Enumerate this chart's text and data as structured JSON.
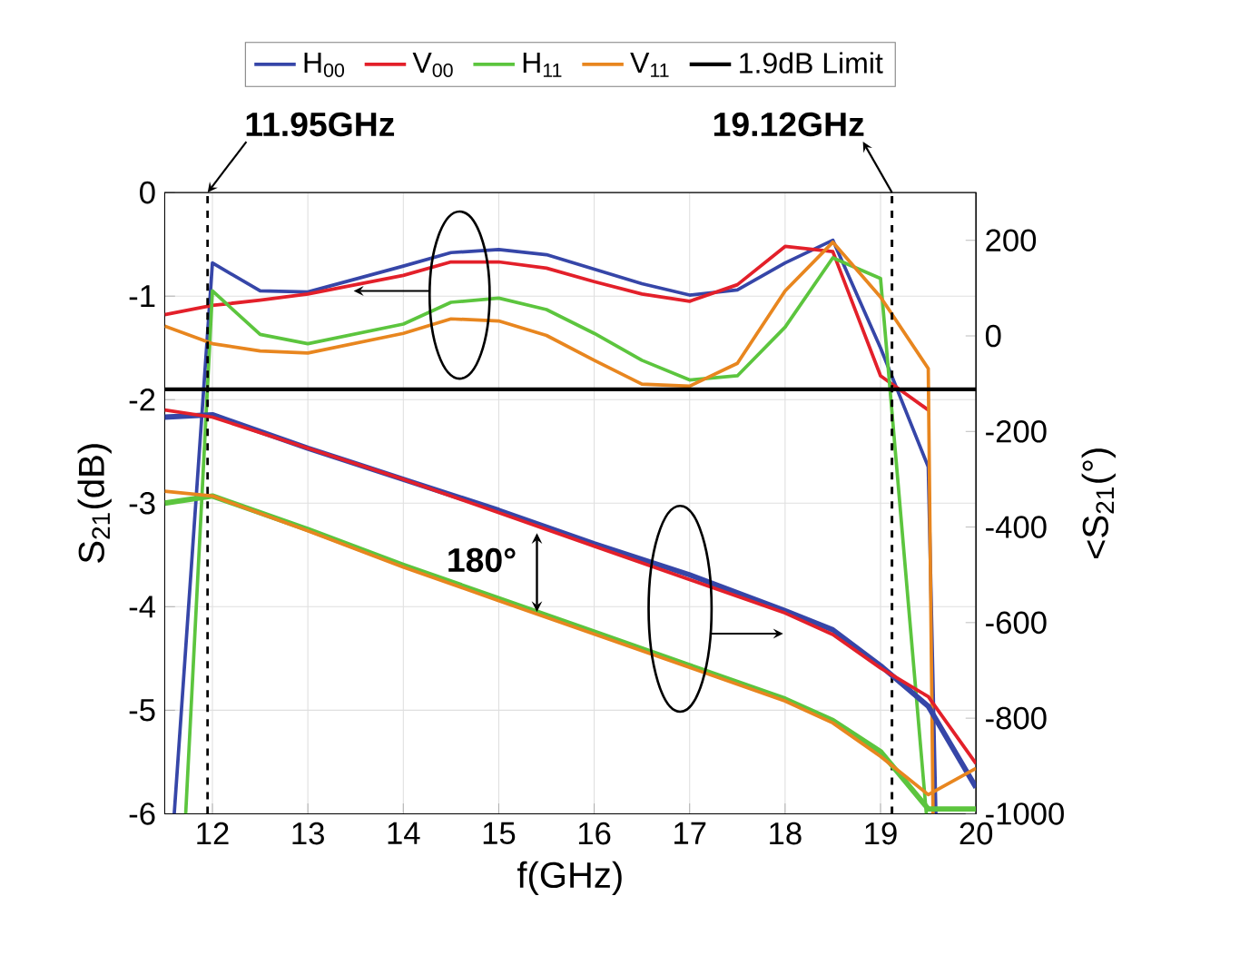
{
  "chart_data": {
    "type": "line",
    "xlabel": "f(GHz)",
    "ylabel": "S$_{21}$(dB)",
    "y2label": "<S$_{21}$(°)",
    "xlim": [
      11.5,
      20
    ],
    "xticks": [
      12,
      13,
      14,
      15,
      16,
      17,
      18,
      19,
      20
    ],
    "ylim": [
      -6,
      0
    ],
    "yticks": [
      -6,
      -5,
      -4,
      -3,
      -2,
      -1,
      0
    ],
    "y2lim": [
      -1000,
      300
    ],
    "y2ticks": [
      -1000,
      -800,
      -600,
      -400,
      -200,
      0,
      200
    ],
    "grid": true,
    "legend": "top",
    "marker": "none",
    "line_style": "solid",
    "series": [
      {
        "name": "H$_{00}$",
        "color": "#3646a8",
        "x": [
          11.6,
          12,
          12.5,
          13,
          14,
          14.5,
          15,
          15.5,
          16,
          16.5,
          17,
          17.5,
          18,
          18.5,
          19,
          19.5,
          19.58
        ],
        "values": [
          -6,
          -0.68,
          -0.95,
          -0.96,
          -0.71,
          -0.58,
          -0.55,
          -0.6,
          -0.74,
          -0.88,
          -0.99,
          -0.94,
          -0.68,
          -0.46,
          -1.5,
          -2.65,
          -6
        ]
      },
      {
        "name": "V$_{00}$",
        "color": "#e3202a",
        "x": [
          11.5,
          12,
          12.5,
          13,
          14,
          14.5,
          15,
          15.5,
          16,
          16.5,
          17,
          17.5,
          18,
          18.5,
          19,
          19.5
        ],
        "values": [
          -1.18,
          -1.09,
          -1.04,
          -0.98,
          -0.8,
          -0.67,
          -0.67,
          -0.73,
          -0.86,
          -0.98,
          -1.05,
          -0.89,
          -0.52,
          -0.57,
          -1.77,
          -2.1
        ]
      },
      {
        "name": "H$_{11}$",
        "color": "#5cc53e",
        "x": [
          11.72,
          12,
          12.5,
          13,
          14,
          14.5,
          15,
          15.5,
          16,
          16.5,
          17,
          17.5,
          18,
          18.5,
          19,
          19.48
        ],
        "values": [
          -6,
          -0.95,
          -1.37,
          -1.46,
          -1.27,
          -1.06,
          -1.02,
          -1.13,
          -1.36,
          -1.62,
          -1.81,
          -1.77,
          -1.3,
          -0.63,
          -0.83,
          -6
        ]
      },
      {
        "name": "V$_{11}$",
        "color": "#e8861f",
        "x": [
          11.5,
          12,
          12.5,
          13,
          14,
          14.5,
          15,
          15.5,
          16,
          16.5,
          17,
          17.5,
          18,
          18.5,
          19,
          19.5,
          19.55
        ],
        "values": [
          -1.29,
          -1.46,
          -1.53,
          -1.55,
          -1.36,
          -1.22,
          -1.24,
          -1.38,
          -1.62,
          -1.85,
          -1.87,
          -1.65,
          -0.95,
          -0.48,
          -1.01,
          -1.7,
          -6
        ]
      },
      {
        "color": "#3646a8",
        "axis": "y2",
        "x": [
          11.5,
          12,
          13,
          14,
          15,
          16,
          17,
          18,
          18.5,
          19,
          19.5,
          20
        ],
        "values": [
          -170,
          -165,
          -235,
          -300,
          -365,
          -435,
          -500,
          -575,
          -615,
          -690,
          -775,
          -945
        ]
      },
      {
        "color": "#e3202a",
        "axis": "y2",
        "x": [
          11.5,
          12,
          13,
          14,
          15,
          16,
          17,
          18,
          18.5,
          19,
          19.5,
          20
        ],
        "values": [
          -155,
          -170,
          -235,
          -300,
          -370,
          -440,
          -510,
          -580,
          -625,
          -695,
          -755,
          -895
        ]
      },
      {
        "color": "#5cc53e",
        "axis": "y2",
        "x": [
          11.5,
          12,
          13,
          14,
          15,
          16,
          17,
          18,
          18.5,
          19,
          19.5,
          20
        ],
        "values": [
          -350,
          -335,
          -405,
          -480,
          -550,
          -620,
          -690,
          -760,
          -805,
          -870,
          -990,
          -990
        ]
      },
      {
        "color": "#e8861f",
        "axis": "y2",
        "x": [
          11.5,
          12,
          13,
          14,
          15,
          16,
          17,
          18,
          18.5,
          19,
          19.5,
          20
        ],
        "values": [
          -325,
          -335,
          -408,
          -484,
          -554,
          -624,
          -694,
          -764,
          -810,
          -880,
          -960,
          -905
        ]
      }
    ],
    "ref_lines": [
      {
        "axis": "y",
        "value": -1.9,
        "label": "1.9dB Limit",
        "color": "#000000",
        "line_style": "solid"
      },
      {
        "axis": "x",
        "value": 11.95,
        "label": "11.95GHz",
        "color": "#000000",
        "line_style": "dashed"
      },
      {
        "axis": "x",
        "value": 19.12,
        "label": "19.12GHz",
        "color": "#000000",
        "line_style": "dashed"
      }
    ],
    "annotations": [
      "180°"
    ]
  }
}
